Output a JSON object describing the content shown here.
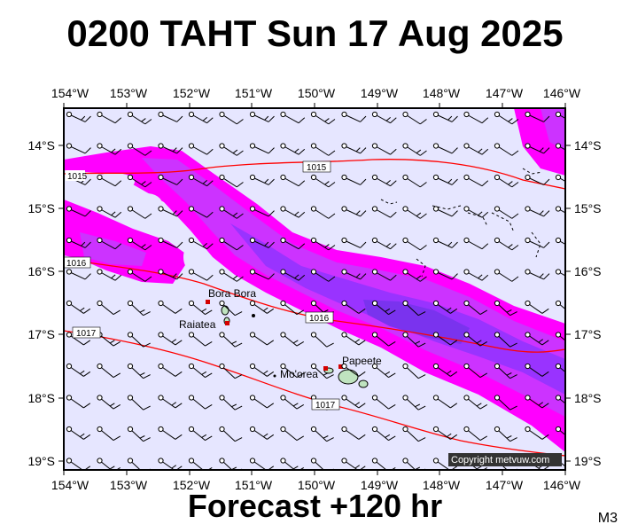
{
  "title": "0200 TAHT Sun 17 Aug 2025",
  "footer": "Forecast +120 hr",
  "model_code": "M3",
  "copyright": "Copyright metvuw.com",
  "chart_data": {
    "type": "map",
    "lon_range": [
      -154,
      -146
    ],
    "lat_range": [
      -19.1,
      -13.6
    ],
    "lon_ticks": [
      "154°W",
      "153°W",
      "152°W",
      "151°W",
      "150°W",
      "149°W",
      "148°W",
      "147°W",
      "146°W"
    ],
    "lat_ticks": [
      "14°S",
      "15°S",
      "16°S",
      "17°S",
      "18°S",
      "19°S"
    ],
    "pressure_labels": [
      "1015",
      "1015",
      "1016",
      "1016",
      "1017",
      "1017"
    ],
    "places": [
      {
        "name": "Bora Bora",
        "lon": -151.75,
        "lat": -16.5
      },
      {
        "name": "Raiatea",
        "lon": -151.45,
        "lat": -16.83
      },
      {
        "name": "Mo'orea",
        "lon": -149.83,
        "lat": -17.53
      },
      {
        "name": "Papeete",
        "lon": -149.57,
        "lat": -17.53
      }
    ],
    "colors": {
      "background": "#e6e6ff",
      "rain_light": "#ff00ff",
      "rain_medium": "#cc33ff",
      "rain_heavy": "#9933ff",
      "rain_very_heavy": "#7a33ee",
      "isobar": "#ff0000"
    }
  }
}
